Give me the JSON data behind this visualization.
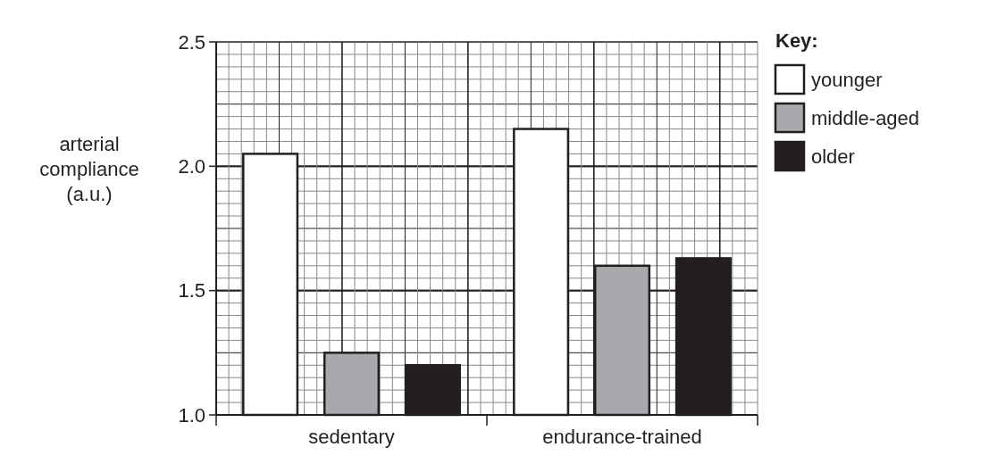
{
  "chart_data": {
    "type": "bar",
    "ylabel": "arterial\ncompliance\n(a.u.)",
    "legend_title": "Key:",
    "categories": [
      "sedentary",
      "endurance-trained"
    ],
    "series": [
      {
        "name": "younger",
        "color": "#ffffff",
        "values": [
          2.05,
          2.15
        ]
      },
      {
        "name": "middle-aged",
        "color": "#a7a9ac",
        "values": [
          1.25,
          1.6
        ]
      },
      {
        "name": "older",
        "color": "#231f20",
        "values": [
          1.2,
          1.63
        ]
      }
    ],
    "ylim": [
      1.0,
      2.5
    ],
    "yticks": [
      {
        "value": 1.0,
        "label": "1.0"
      },
      {
        "value": 1.5,
        "label": "1.5"
      },
      {
        "value": 2.0,
        "label": "2.0"
      },
      {
        "value": 2.5,
        "label": "2.5"
      }
    ],
    "grid": true,
    "legend": "top right"
  }
}
